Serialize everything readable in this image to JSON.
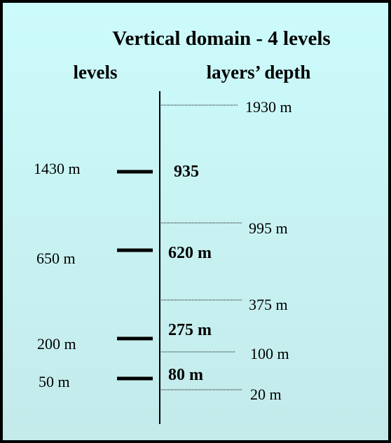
{
  "title": "Vertical domain - 4 levels",
  "headers": {
    "levels": "levels",
    "depth": "layers’ depth"
  },
  "levels": [
    "1430 m",
    "650 m",
    "200 m",
    "50 m"
  ],
  "layers": [
    "935",
    "620 m",
    "275 m",
    "80 m"
  ],
  "boundaries": [
    "1930 m",
    "995 m",
    "375 m",
    "100 m",
    "20 m"
  ]
}
